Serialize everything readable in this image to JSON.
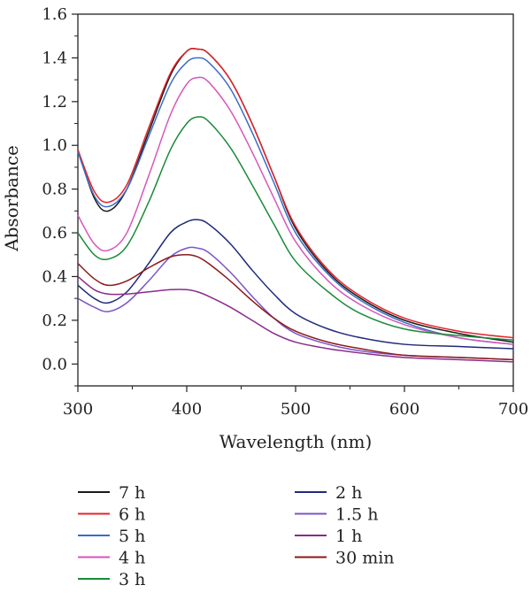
{
  "chart_data": {
    "type": "line",
    "title": "",
    "xlabel": "Wavelength (nm)",
    "ylabel": "Absorbance",
    "xlim": [
      300,
      700
    ],
    "ylim": [
      -0.1,
      1.6
    ],
    "xticks": [
      300,
      400,
      500,
      600,
      700
    ],
    "yticks": [
      0.0,
      0.2,
      0.4,
      0.6,
      0.8,
      1.0,
      1.2,
      1.4,
      1.6
    ],
    "grid": false,
    "legend_position": "below",
    "x": [
      300,
      315,
      328,
      345,
      365,
      385,
      400,
      410,
      420,
      440,
      460,
      480,
      500,
      530,
      560,
      600,
      650,
      700
    ],
    "series": [
      {
        "name": "7 h",
        "color": "#1a1a1a",
        "values": [
          0.98,
          0.76,
          0.7,
          0.8,
          1.06,
          1.32,
          1.43,
          1.44,
          1.42,
          1.3,
          1.1,
          0.86,
          0.62,
          0.42,
          0.3,
          0.2,
          0.14,
          0.1
        ]
      },
      {
        "name": "6 h",
        "color": "#e3242b",
        "values": [
          0.98,
          0.79,
          0.74,
          0.82,
          1.08,
          1.33,
          1.43,
          1.44,
          1.42,
          1.3,
          1.1,
          0.86,
          0.63,
          0.43,
          0.31,
          0.21,
          0.15,
          0.12
        ]
      },
      {
        "name": "5 h",
        "color": "#3b6cc7",
        "values": [
          0.97,
          0.77,
          0.72,
          0.8,
          1.04,
          1.28,
          1.38,
          1.4,
          1.38,
          1.26,
          1.06,
          0.83,
          0.6,
          0.41,
          0.29,
          0.19,
          0.12,
          0.09
        ]
      },
      {
        "name": "4 h",
        "color": "#d657b9",
        "values": [
          0.68,
          0.55,
          0.52,
          0.6,
          0.86,
          1.14,
          1.28,
          1.31,
          1.29,
          1.16,
          0.97,
          0.76,
          0.56,
          0.38,
          0.27,
          0.18,
          0.12,
          0.09
        ]
      },
      {
        "name": "3 h",
        "color": "#1a8b3a",
        "values": [
          0.6,
          0.5,
          0.48,
          0.54,
          0.74,
          0.98,
          1.1,
          1.13,
          1.11,
          0.99,
          0.82,
          0.64,
          0.47,
          0.33,
          0.23,
          0.16,
          0.13,
          0.11
        ]
      },
      {
        "name": "2 h",
        "color": "#1f2a7a",
        "values": [
          0.36,
          0.3,
          0.28,
          0.33,
          0.46,
          0.6,
          0.65,
          0.66,
          0.64,
          0.55,
          0.43,
          0.32,
          0.23,
          0.16,
          0.12,
          0.09,
          0.08,
          0.07
        ]
      },
      {
        "name": "1.5 h",
        "color": "#7a55c7",
        "values": [
          0.3,
          0.26,
          0.24,
          0.28,
          0.38,
          0.49,
          0.53,
          0.53,
          0.51,
          0.42,
          0.31,
          0.21,
          0.14,
          0.09,
          0.06,
          0.04,
          0.03,
          0.02
        ]
      },
      {
        "name": "1 h",
        "color": "#8a2a8a",
        "values": [
          0.4,
          0.34,
          0.32,
          0.32,
          0.33,
          0.34,
          0.34,
          0.33,
          0.31,
          0.26,
          0.2,
          0.14,
          0.1,
          0.07,
          0.05,
          0.03,
          0.02,
          0.01
        ]
      },
      {
        "name": "30 min",
        "color": "#8b1a1a",
        "values": [
          0.46,
          0.39,
          0.36,
          0.38,
          0.44,
          0.49,
          0.5,
          0.49,
          0.46,
          0.38,
          0.29,
          0.21,
          0.15,
          0.1,
          0.07,
          0.04,
          0.03,
          0.02
        ]
      }
    ]
  }
}
